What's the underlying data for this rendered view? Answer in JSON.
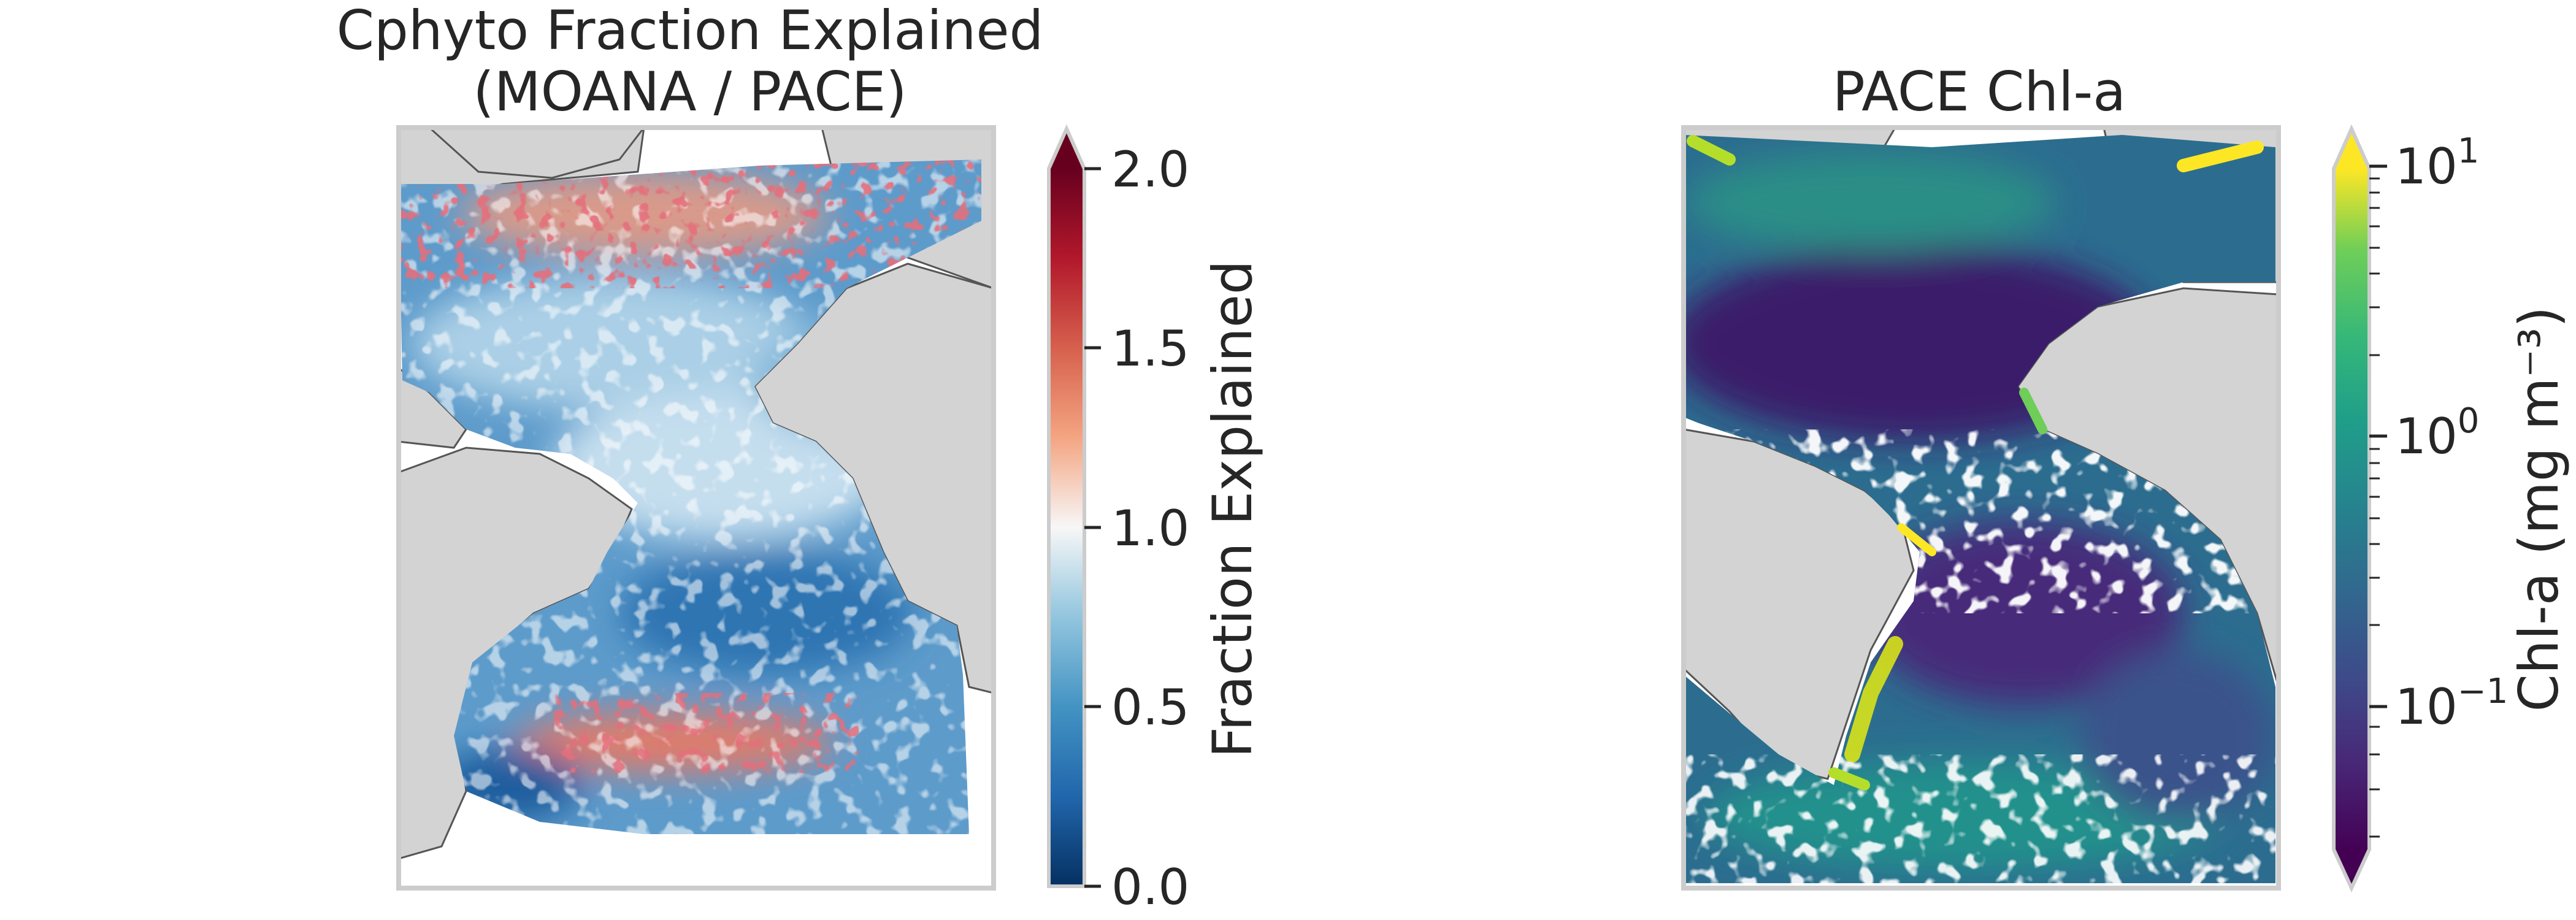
{
  "panels": [
    {
      "title_line1": "Cphyto Fraction Explained",
      "title_line2": "(MOANA / PACE)",
      "colorbar": {
        "label": "Fraction Explained",
        "colormap": "RdBu_r",
        "range": [
          0.0,
          2.0
        ],
        "extend": "max",
        "ticks": [
          "0.0",
          "0.5",
          "1.0",
          "1.5",
          "2.0"
        ]
      }
    },
    {
      "title_line1": "PACE Chl-a",
      "colorbar": {
        "label": "Chl-a (mg m⁻³)",
        "colormap": "viridis",
        "scale": "log",
        "range": [
          0.03,
          12
        ],
        "extend": "both",
        "ticks": [
          {
            "base": "10",
            "exp": "−1"
          },
          {
            "base": "10",
            "exp": "0"
          },
          {
            "base": "10",
            "exp": "1"
          }
        ]
      }
    }
  ],
  "map_colors": {
    "land": "#d3d3d3",
    "coastline": "#555555",
    "no_data": "#ffffff"
  }
}
